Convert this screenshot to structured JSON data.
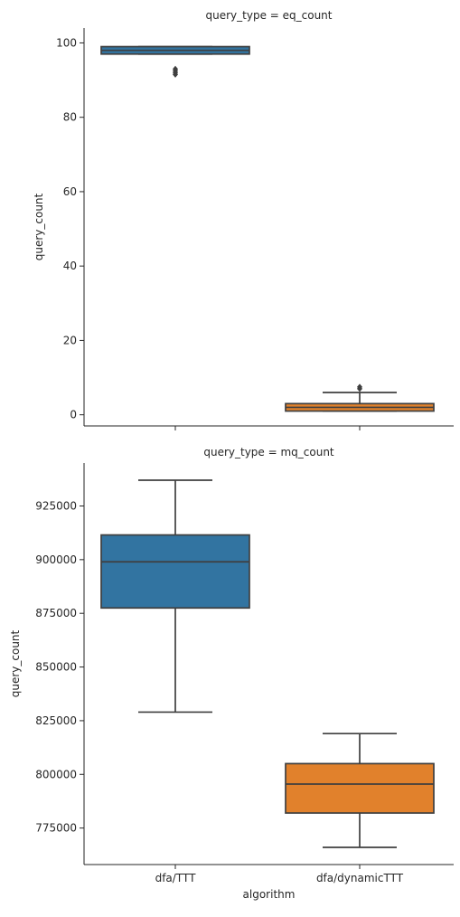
{
  "chart_data": [
    {
      "type": "box",
      "title": "query_type = eq_count",
      "xlabel": "",
      "ylabel": "query_count",
      "categories": [
        "dfa/TTT",
        "dfa/dynamicTTT"
      ],
      "ylim": [
        -3,
        104
      ],
      "yticks": [
        0,
        20,
        40,
        60,
        80,
        100
      ],
      "ytick_labels": [
        "0",
        "20",
        "40",
        "60",
        "80",
        "100"
      ],
      "xtick_labels_visible": false,
      "boxes": [
        {
          "category": "dfa/TTT",
          "color": "#3274a1",
          "whisker_low": 97,
          "q1": 97,
          "median": 98,
          "q3": 99,
          "whisker_high": 99,
          "outliers": [
            93,
            92.5,
            92,
            91.5
          ]
        },
        {
          "category": "dfa/dynamicTTT",
          "color": "#e1812c",
          "whisker_low": 1,
          "q1": 1,
          "median": 2,
          "q3": 3,
          "whisker_high": 6,
          "outliers": [
            7,
            7.5
          ]
        }
      ]
    },
    {
      "type": "box",
      "title": "query_type = mq_count",
      "xlabel": "algorithm",
      "ylabel": "query_count",
      "categories": [
        "dfa/TTT",
        "dfa/dynamicTTT"
      ],
      "ylim": [
        758000,
        945000
      ],
      "yticks": [
        775000,
        800000,
        825000,
        850000,
        875000,
        900000,
        925000
      ],
      "ytick_labels": [
        "775000",
        "800000",
        "825000",
        "850000",
        "875000",
        "900000",
        "925000"
      ],
      "xtick_labels_visible": true,
      "boxes": [
        {
          "category": "dfa/TTT",
          "color": "#3274a1",
          "whisker_low": 829000,
          "q1": 877500,
          "median": 899000,
          "q3": 911500,
          "whisker_high": 937000,
          "outliers": []
        },
        {
          "category": "dfa/dynamicTTT",
          "color": "#e1812c",
          "whisker_low": 766000,
          "q1": 782000,
          "median": 795500,
          "q3": 805000,
          "whisker_high": 819000,
          "outliers": []
        }
      ]
    }
  ]
}
